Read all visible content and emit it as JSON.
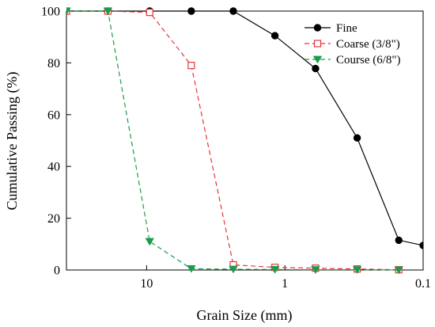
{
  "chart_data": {
    "type": "line",
    "xlabel": "Grain Size (mm)",
    "ylabel": "Cumulative Passing (%)",
    "x_scale": "log",
    "x_reversed": true,
    "xlim": [
      38,
      0.1
    ],
    "ylim": [
      0,
      100
    ],
    "x_ticks": [
      10,
      1,
      0.1
    ],
    "x_tick_labels": [
      "10",
      "1",
      "0.1"
    ],
    "y_ticks": [
      0,
      20,
      40,
      60,
      80,
      100
    ],
    "y_tick_labels": [
      "0",
      "20",
      "40",
      "60",
      "80",
      "100"
    ],
    "grid": false,
    "legend_position": "top-right",
    "series": [
      {
        "name": "Fine",
        "color": "#000000",
        "marker": "filled-circle",
        "line_style": "solid",
        "x": [
          38,
          19.05,
          9.5,
          4.75,
          2.36,
          1.18,
          0.6,
          0.3,
          0.15,
          0.1
        ],
        "y": [
          100,
          100,
          100,
          100,
          100,
          90.5,
          77.8,
          51,
          11.5,
          9.5
        ]
      },
      {
        "name": "Coarse (3/8\")",
        "color": "#e8333a",
        "marker": "open-square",
        "line_style": "dashed",
        "x": [
          38,
          19.05,
          9.5,
          4.75,
          2.36,
          1.18,
          0.6,
          0.3,
          0.15
        ],
        "y": [
          100,
          100,
          99.5,
          79,
          2,
          1,
          0.7,
          0.4,
          0.1
        ]
      },
      {
        "name": "Course (6/8\")",
        "color": "#1a9c4a",
        "marker": "filled-triangle-down",
        "line_style": "dashed",
        "x": [
          38,
          19.05,
          9.5,
          4.75,
          2.36,
          1.18,
          0.6,
          0.3,
          0.15
        ],
        "y": [
          100,
          100,
          11,
          0.5,
          0.3,
          0.2,
          0.1,
          0.1,
          0
        ]
      }
    ]
  }
}
